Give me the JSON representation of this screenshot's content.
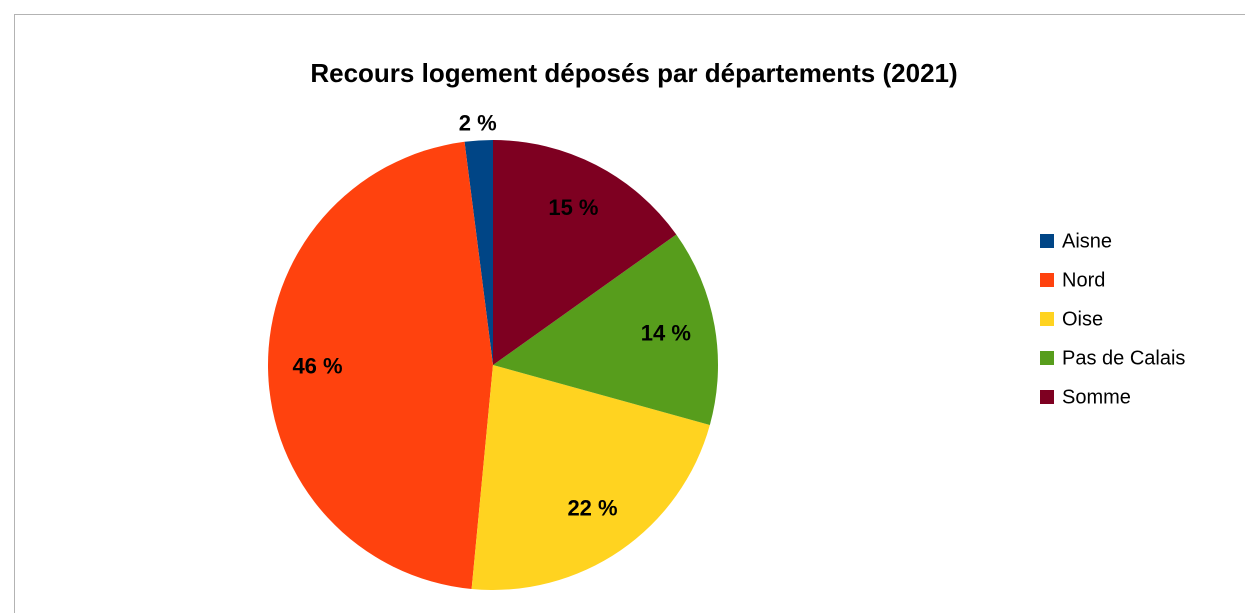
{
  "chart_data": {
    "type": "pie",
    "title": "Recours logement déposés par départements (2021)",
    "categories": [
      "Aisne",
      "Nord",
      "Oise",
      "Pas de Calais",
      "Somme"
    ],
    "values": [
      2,
      46,
      22,
      14,
      15
    ],
    "value_labels": [
      "2 %",
      "46 %",
      "22 %",
      "14 %",
      "15 %"
    ],
    "colors": [
      "#004586",
      "#ff420e",
      "#ffd320",
      "#579d1c",
      "#7e0021"
    ],
    "legend": "right"
  }
}
